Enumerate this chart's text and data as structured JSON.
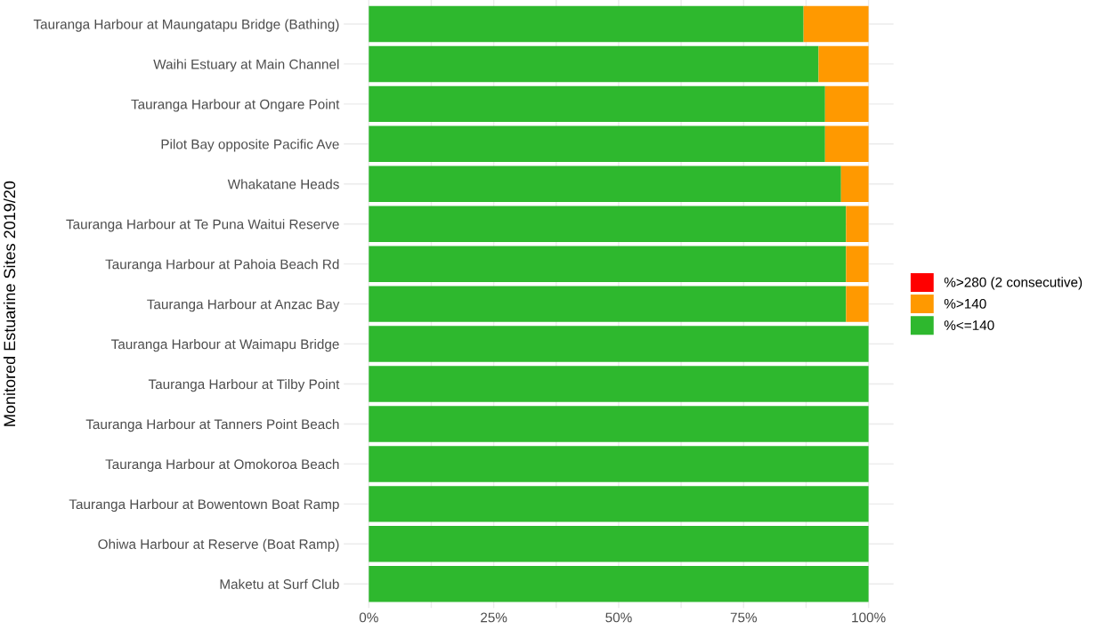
{
  "chart_data": {
    "type": "bar",
    "orientation": "horizontal",
    "stacked": true,
    "ylabel": "Monitored Estuarine Sites 2019/20",
    "categories": [
      "Tauranga Harbour at Maungatapu Bridge (Bathing)",
      "Waihi Estuary at Main Channel",
      "Tauranga Harbour at Ongare Point",
      "Pilot Bay opposite Pacific Ave",
      "Whakatane Heads",
      "Tauranga Harbour at Te Puna Waitui Reserve",
      "Tauranga Harbour at Pahoia Beach Rd",
      "Tauranga Harbour at Anzac Bay",
      "Tauranga Harbour at Waimapu Bridge",
      "Tauranga Harbour at Tilby Point",
      "Tauranga Harbour at Tanners Point Beach",
      "Tauranga Harbour at Omokoroa Beach",
      "Tauranga Harbour at Bowentown Boat Ramp",
      "Ohiwa Harbour at Reserve (Boat Ramp)",
      "Maketu at Surf Club"
    ],
    "series": [
      {
        "name": "%<=140",
        "color": "#2eb82e",
        "values": [
          87.0,
          90.0,
          91.3,
          91.3,
          94.5,
          95.5,
          95.5,
          95.5,
          100,
          100,
          100,
          100,
          100,
          100,
          100
        ]
      },
      {
        "name": "%>140",
        "color": "#ff9900",
        "values": [
          13.0,
          10.0,
          8.7,
          8.7,
          5.5,
          4.5,
          4.5,
          4.5,
          0,
          0,
          0,
          0,
          0,
          0,
          0
        ]
      },
      {
        "name": "%>280 (2 consecutive)",
        "color": "#ff0000",
        "values": [
          0,
          0,
          0,
          0,
          0,
          0,
          0,
          0,
          0,
          0,
          0,
          0,
          0,
          0,
          0
        ]
      }
    ],
    "xlim": [
      -5,
      105
    ],
    "xticks": [
      {
        "value": 0,
        "label": "0%"
      },
      {
        "value": 12.5,
        "label": null
      },
      {
        "value": 25,
        "label": "25%"
      },
      {
        "value": 37.5,
        "label": null
      },
      {
        "value": 50,
        "label": "50%"
      },
      {
        "value": 62.5,
        "label": null
      },
      {
        "value": 75,
        "label": "75%"
      },
      {
        "value": 87.5,
        "label": null
      },
      {
        "value": 100,
        "label": "100%"
      }
    ],
    "grid": true,
    "legend": "right"
  }
}
